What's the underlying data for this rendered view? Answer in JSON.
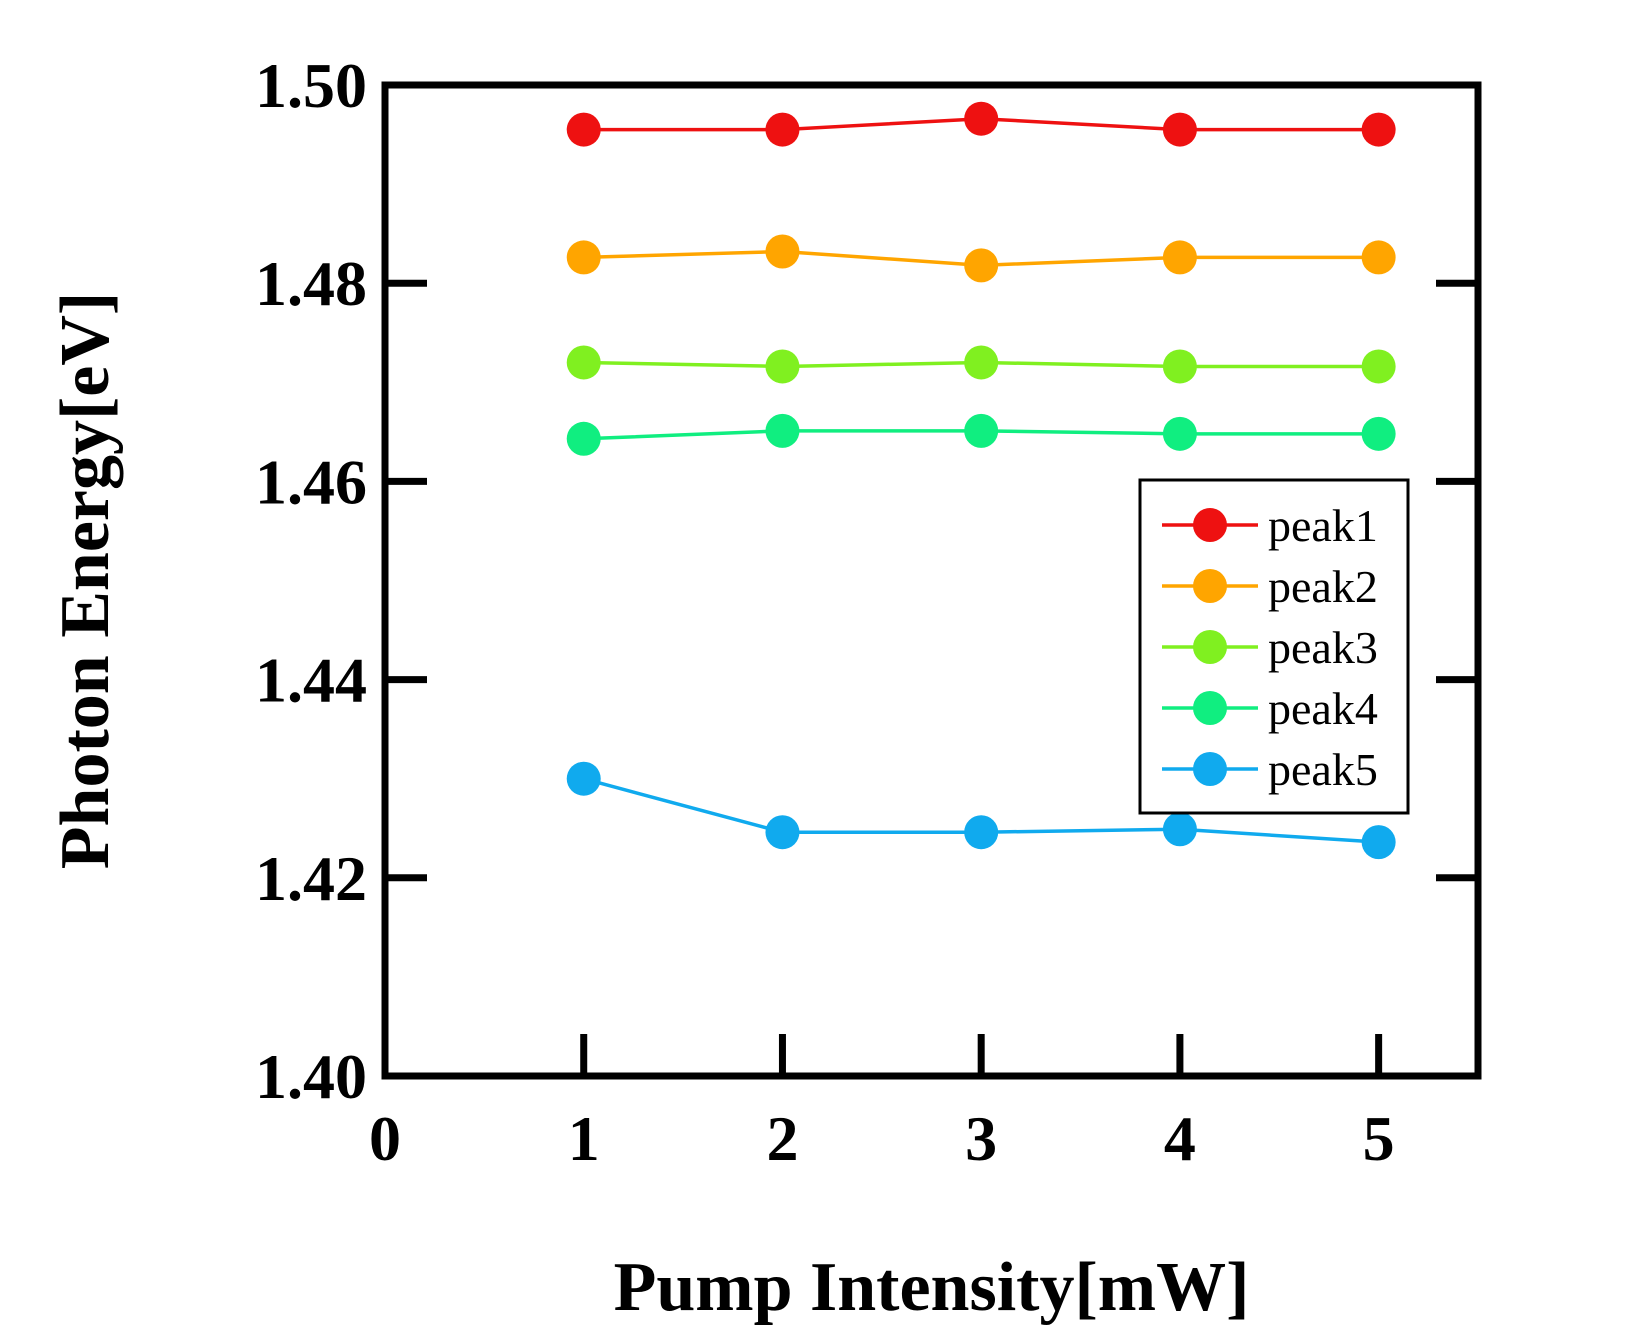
{
  "chart_data": {
    "type": "line",
    "title": "",
    "xlabel": "Pump Intensity[mW]",
    "ylabel": "Photon Energy[eV]",
    "xlim": [
      0,
      5.5
    ],
    "ylim": [
      1.4,
      1.5
    ],
    "x_ticks": [
      {
        "value": 0,
        "label": "0"
      },
      {
        "value": 1,
        "label": "1"
      },
      {
        "value": 2,
        "label": "2"
      },
      {
        "value": 3,
        "label": "3"
      },
      {
        "value": 4,
        "label": "4"
      },
      {
        "value": 5,
        "label": "5"
      }
    ],
    "y_ticks": [
      {
        "value": 1.4,
        "label": "1.40"
      },
      {
        "value": 1.42,
        "label": "1.42"
      },
      {
        "value": 1.44,
        "label": "1.44"
      },
      {
        "value": 1.46,
        "label": "1.46"
      },
      {
        "value": 1.48,
        "label": "1.48"
      },
      {
        "value": 1.5,
        "label": "1.50"
      }
    ],
    "grid": false,
    "legend_position": "right",
    "x": [
      1,
      2,
      3,
      4,
      5
    ],
    "series": [
      {
        "name": "peak1",
        "color": "#ee1111",
        "values": [
          1.4955,
          1.4955,
          1.4966,
          1.4955,
          1.4955
        ]
      },
      {
        "name": "peak2",
        "color": "#ffa500",
        "values": [
          1.4826,
          1.4832,
          1.4818,
          1.4826,
          1.4826
        ]
      },
      {
        "name": "peak3",
        "color": "#80f020",
        "values": [
          1.472,
          1.4716,
          1.472,
          1.4716,
          1.4716
        ]
      },
      {
        "name": "peak4",
        "color": "#10ee80",
        "values": [
          1.4643,
          1.4651,
          1.4651,
          1.4648,
          1.4648
        ]
      },
      {
        "name": "peak5",
        "color": "#10aaee",
        "values": [
          1.43,
          1.4246,
          1.4246,
          1.4249,
          1.4236
        ]
      }
    ]
  }
}
